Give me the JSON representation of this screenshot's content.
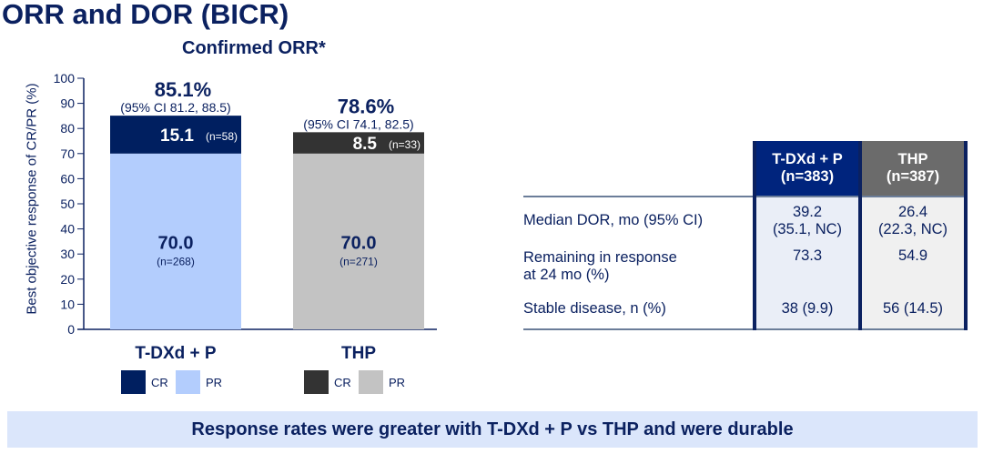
{
  "title": "ORR and DOR (BICR)",
  "chart_data": {
    "type": "bar",
    "stacked": true,
    "title": "Confirmed ORR*",
    "ylabel": "Best objective response of CR/PR (%)",
    "ylim": [
      0,
      100
    ],
    "yticks": [
      "0",
      "10",
      "20",
      "30",
      "40",
      "50",
      "60",
      "70",
      "80",
      "90",
      "100"
    ],
    "categories": [
      "T-DXd + P",
      "THP"
    ],
    "series": [
      {
        "name": "PR",
        "values": [
          70.0,
          70.0
        ],
        "labels": [
          "70.0",
          "70.0"
        ],
        "n": [
          "(n=268)",
          "(n=271)"
        ],
        "colors": [
          "#b3cdfd",
          "#c3c3c3"
        ]
      },
      {
        "name": "CR",
        "values": [
          15.1,
          8.5
        ],
        "labels": [
          "15.1",
          "8.5"
        ],
        "n": [
          "(n=58)",
          "(n=33)"
        ],
        "colors": [
          "#001f60",
          "#333333"
        ]
      }
    ],
    "totals": [
      "85.1%",
      "78.6%"
    ],
    "ci": [
      "(95% CI 81.2, 88.5)",
      "(95% CI 74.1, 82.5)"
    ],
    "legend": {
      "cr": "CR",
      "pr": "PR"
    }
  },
  "table": {
    "headers": [
      {
        "name": "T-DXd + P",
        "n": "(n=383)"
      },
      {
        "name": "THP",
        "n": "(n=387)"
      }
    ],
    "rows": [
      {
        "label": "Median DOR, mo (95% CI)",
        "a": "39.2",
        "a2": "(35.1, NC)",
        "b": "26.4",
        "b2": "(22.3, NC)"
      },
      {
        "label": "Remaining in response",
        "label2": "at 24 mo (%)",
        "a": "73.3",
        "b": "54.9"
      },
      {
        "label": "Stable disease, n (%)",
        "a": "38 (9.9)",
        "b": "56 (14.5)"
      }
    ]
  },
  "banner": "Response rates were greater with T-DXd + P vs THP and were durable"
}
